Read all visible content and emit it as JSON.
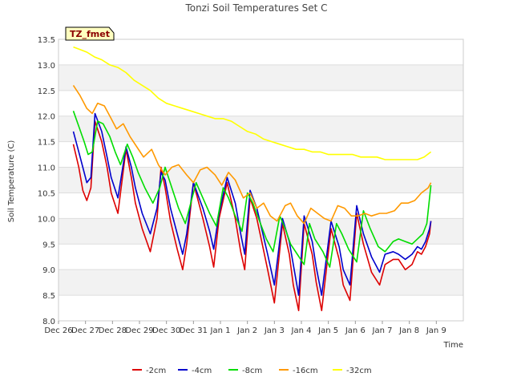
{
  "chart_data": {
    "type": "line",
    "title": "Tonzi Soil Temperatures Set C",
    "xlabel": "Time",
    "ylabel": "Soil Temperature (C)",
    "station_label": "TZ_fmet",
    "ylim": [
      8.0,
      13.5
    ],
    "yticks": [
      "8.0",
      "8.5",
      "9.0",
      "9.5",
      "10.0",
      "10.5",
      "11.0",
      "11.5",
      "12.0",
      "12.5",
      "13.0",
      "13.5"
    ],
    "xlim": [
      0,
      15
    ],
    "xticks": [
      "Dec 26",
      "Dec 27",
      "Dec 28",
      "Dec 29",
      "Dec 30",
      "Dec 31",
      "Jan 1",
      "Jan 2",
      "Jan 3",
      "Jan 4",
      "Jan 5",
      "Jan 6",
      "Jan 7",
      "Jan 8",
      "Jan 9"
    ],
    "grid": true,
    "legend_position": "bottom-center",
    "series": [
      {
        "name": "-2cm",
        "color": "#dd0000",
        "x": [
          0.55,
          0.75,
          0.9,
          1.05,
          1.2,
          1.35,
          1.6,
          1.8,
          1.95,
          2.2,
          2.5,
          2.7,
          2.85,
          3.1,
          3.4,
          3.65,
          3.8,
          3.95,
          4.15,
          4.4,
          4.6,
          4.75,
          5.0,
          5.35,
          5.6,
          5.75,
          5.95,
          6.25,
          6.55,
          6.75,
          6.9,
          7.1,
          7.35,
          7.55,
          7.75,
          8.0,
          8.3,
          8.55,
          8.7,
          8.9,
          9.1,
          9.4,
          9.55,
          9.75,
          10.1,
          10.4,
          10.55,
          10.8,
          11.05,
          11.3,
          11.6,
          11.9,
          12.1,
          12.4,
          12.6,
          12.85,
          13.1,
          13.3,
          13.45,
          13.6,
          13.75,
          13.8
        ],
        "values": [
          11.45,
          11.0,
          10.55,
          10.35,
          10.6,
          11.9,
          11.5,
          11.0,
          10.5,
          10.1,
          11.35,
          10.8,
          10.3,
          9.8,
          9.35,
          10.0,
          11.0,
          10.6,
          9.95,
          9.4,
          9.0,
          9.5,
          10.7,
          10.0,
          9.45,
          9.05,
          10.0,
          10.7,
          10.0,
          9.35,
          9.0,
          10.4,
          10.0,
          9.5,
          9.0,
          8.35,
          9.9,
          9.3,
          8.7,
          8.2,
          9.9,
          9.3,
          8.75,
          8.2,
          9.8,
          9.2,
          8.7,
          8.4,
          10.1,
          9.5,
          8.95,
          8.7,
          9.1,
          9.2,
          9.2,
          9.0,
          9.1,
          9.35,
          9.3,
          9.45,
          9.7,
          9.95
        ]
      },
      {
        "name": "-4cm",
        "color": "#0000cc",
        "x": [
          0.55,
          0.75,
          0.9,
          1.05,
          1.2,
          1.35,
          1.6,
          1.8,
          1.95,
          2.2,
          2.5,
          2.7,
          2.85,
          3.1,
          3.4,
          3.65,
          3.8,
          3.95,
          4.15,
          4.4,
          4.6,
          4.75,
          5.0,
          5.35,
          5.6,
          5.75,
          5.95,
          6.25,
          6.55,
          6.75,
          6.9,
          7.1,
          7.35,
          7.55,
          7.75,
          8.0,
          8.3,
          8.55,
          8.7,
          8.9,
          9.1,
          9.4,
          9.55,
          9.75,
          10.1,
          10.4,
          10.55,
          10.8,
          11.05,
          11.3,
          11.6,
          11.9,
          12.1,
          12.4,
          12.6,
          12.85,
          13.1,
          13.3,
          13.45,
          13.6,
          13.75,
          13.8
        ],
        "values": [
          11.7,
          11.3,
          11.0,
          10.7,
          10.8,
          12.05,
          11.7,
          11.2,
          10.8,
          10.4,
          11.4,
          11.0,
          10.6,
          10.1,
          9.7,
          10.2,
          10.9,
          10.75,
          10.2,
          9.7,
          9.3,
          9.7,
          10.7,
          10.2,
          9.75,
          9.4,
          10.1,
          10.8,
          10.3,
          9.7,
          9.3,
          10.55,
          10.2,
          9.75,
          9.3,
          8.7,
          10.0,
          9.55,
          9.1,
          8.5,
          10.05,
          9.55,
          9.05,
          8.5,
          9.95,
          9.45,
          9.0,
          8.7,
          10.25,
          9.7,
          9.25,
          8.95,
          9.3,
          9.35,
          9.3,
          9.2,
          9.3,
          9.45,
          9.4,
          9.55,
          9.8,
          9.95
        ]
      },
      {
        "name": "-8cm",
        "color": "#00dd00",
        "x": [
          0.55,
          0.75,
          0.95,
          1.1,
          1.25,
          1.45,
          1.65,
          1.9,
          2.1,
          2.3,
          2.55,
          2.75,
          2.95,
          3.2,
          3.5,
          3.75,
          3.95,
          4.2,
          4.45,
          4.7,
          4.9,
          5.1,
          5.35,
          5.6,
          5.85,
          6.1,
          6.3,
          6.55,
          6.8,
          7.0,
          7.2,
          7.45,
          7.7,
          7.95,
          8.2,
          8.4,
          8.6,
          8.85,
          9.1,
          9.3,
          9.5,
          9.8,
          10.05,
          10.3,
          10.5,
          10.75,
          11.05,
          11.3,
          11.55,
          11.85,
          12.1,
          12.4,
          12.6,
          12.85,
          13.1,
          13.3,
          13.5,
          13.65,
          13.8
        ],
        "values": [
          12.1,
          11.8,
          11.5,
          11.25,
          11.3,
          11.9,
          11.85,
          11.6,
          11.3,
          11.05,
          11.45,
          11.2,
          10.9,
          10.6,
          10.3,
          10.6,
          11.0,
          10.6,
          10.2,
          9.9,
          10.3,
          10.7,
          10.4,
          10.1,
          9.85,
          10.6,
          10.4,
          10.05,
          9.75,
          10.5,
          10.3,
          9.95,
          9.6,
          9.35,
          10.05,
          9.8,
          9.5,
          9.3,
          9.1,
          9.9,
          9.6,
          9.35,
          9.05,
          9.9,
          9.7,
          9.4,
          9.15,
          10.15,
          9.8,
          9.45,
          9.35,
          9.55,
          9.6,
          9.55,
          9.5,
          9.6,
          9.7,
          9.9,
          10.65
        ]
      },
      {
        "name": "-16cm",
        "color": "#ff9900",
        "x": [
          0.55,
          0.8,
          1.05,
          1.25,
          1.45,
          1.7,
          1.95,
          2.15,
          2.4,
          2.65,
          2.9,
          3.15,
          3.45,
          3.7,
          3.95,
          4.2,
          4.45,
          4.75,
          5.0,
          5.25,
          5.5,
          5.8,
          6.05,
          6.3,
          6.55,
          6.85,
          7.1,
          7.35,
          7.6,
          7.85,
          8.1,
          8.4,
          8.6,
          8.85,
          9.1,
          9.35,
          9.6,
          9.85,
          10.1,
          10.35,
          10.6,
          10.85,
          11.1,
          11.35,
          11.6,
          11.9,
          12.15,
          12.45,
          12.7,
          12.95,
          13.2,
          13.45,
          13.7,
          13.8
        ],
        "values": [
          12.6,
          12.4,
          12.15,
          12.05,
          12.25,
          12.2,
          11.95,
          11.75,
          11.85,
          11.6,
          11.4,
          11.2,
          11.35,
          11.05,
          10.85,
          11.0,
          11.05,
          10.85,
          10.7,
          10.95,
          11.0,
          10.85,
          10.65,
          10.9,
          10.75,
          10.4,
          10.5,
          10.2,
          10.3,
          10.05,
          9.95,
          10.25,
          10.3,
          10.05,
          9.9,
          10.2,
          10.1,
          10.0,
          9.95,
          10.25,
          10.2,
          10.05,
          10.05,
          10.1,
          10.05,
          10.1,
          10.1,
          10.15,
          10.3,
          10.3,
          10.35,
          10.5,
          10.6,
          10.7
        ]
      },
      {
        "name": "-32cm",
        "color": "#ffff00",
        "x": [
          0.55,
          0.8,
          1.05,
          1.35,
          1.6,
          1.9,
          2.2,
          2.5,
          2.8,
          3.1,
          3.4,
          3.7,
          4.0,
          4.3,
          4.6,
          4.9,
          5.2,
          5.5,
          5.8,
          6.1,
          6.4,
          6.7,
          7.0,
          7.3,
          7.6,
          7.9,
          8.2,
          8.5,
          8.8,
          9.1,
          9.4,
          9.7,
          10.0,
          10.3,
          10.6,
          10.9,
          11.2,
          11.5,
          11.8,
          12.1,
          12.4,
          12.7,
          13.0,
          13.3,
          13.55,
          13.8
        ],
        "values": [
          13.35,
          13.3,
          13.25,
          13.15,
          13.1,
          13.0,
          12.95,
          12.85,
          12.7,
          12.6,
          12.5,
          12.35,
          12.25,
          12.2,
          12.15,
          12.1,
          12.05,
          12.0,
          11.95,
          11.95,
          11.9,
          11.8,
          11.7,
          11.65,
          11.55,
          11.5,
          11.45,
          11.4,
          11.35,
          11.35,
          11.3,
          11.3,
          11.25,
          11.25,
          11.25,
          11.25,
          11.2,
          11.2,
          11.2,
          11.15,
          11.15,
          11.15,
          11.15,
          11.15,
          11.2,
          11.3
        ]
      }
    ]
  }
}
